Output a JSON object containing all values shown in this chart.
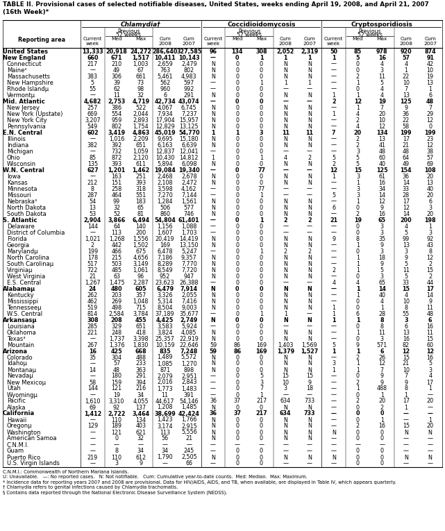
{
  "title": "TABLE II. Provisional cases of selected notifiable diseases, United States, weeks ending April 19, 2008, and April 21, 2007",
  "subtitle": "(16th Week)*",
  "col_groups": [
    "Chlamydia†",
    "Coccidioidomycosis",
    "Cryptosporidiosis"
  ],
  "col_headers": [
    "Current\nweek",
    "Med",
    "Max",
    "Cum\n2008",
    "Cum\n2007"
  ],
  "sub_header": "Previous\n52 weeks",
  "row_label_header": "Reporting area",
  "rows": [
    [
      "United States",
      "13,333",
      "20,918",
      "24,272",
      "286,640",
      "327,585",
      "96",
      "134",
      "308",
      "2,052",
      "2,319",
      "50",
      "85",
      "978",
      "920",
      "874"
    ],
    [
      "New England",
      "660",
      "671",
      "1,517",
      "10,411",
      "10,143",
      "—",
      "0",
      "1",
      "1",
      "1",
      "1",
      "5",
      "16",
      "57",
      "91"
    ],
    [
      "Connecticut",
      "217",
      "210",
      "1,003",
      "2,659",
      "2,479",
      "N",
      "0",
      "0",
      "N",
      "N",
      "—",
      "0",
      "4",
      "4",
      "42"
    ],
    [
      "Maine²",
      "—",
      "49",
      "67",
      "763",
      "802",
      "N",
      "0",
      "0",
      "N",
      "N",
      "—",
      "0",
      "3",
      "1",
      "10"
    ],
    [
      "Massachusetts",
      "383",
      "306",
      "661",
      "5,461",
      "4,983",
      "N",
      "0",
      "0",
      "N",
      "N",
      "—",
      "2",
      "11",
      "22",
      "19"
    ],
    [
      "New Hampshire",
      "5",
      "39",
      "73",
      "562",
      "597",
      "—",
      "0",
      "1",
      "1",
      "1",
      "—",
      "1",
      "5",
      "10",
      "13"
    ],
    [
      "Rhode Islandµ",
      "55",
      "62",
      "98",
      "960",
      "992",
      "—",
      "0",
      "0",
      "—",
      "—",
      "—",
      "0",
      "4",
      "7",
      "1"
    ],
    [
      "Vermontµ",
      "—",
      "11",
      "32",
      "6",
      "291",
      "N",
      "0",
      "0",
      "N",
      "N",
      "1",
      "1",
      "4",
      "13",
      "6"
    ],
    [
      "Mid. Atlantic",
      "4,682",
      "2,753",
      "4,719",
      "42,734",
      "43,074",
      "—",
      "0",
      "0",
      "—",
      "—",
      "2",
      "12",
      "19",
      "125",
      "48"
    ],
    [
      "New Jersey",
      "257",
      "386",
      "522",
      "4,067",
      "6,745",
      "N",
      "0",
      "0",
      "N",
      "N",
      "—",
      "1",
      "7",
      "9",
      "7"
    ],
    [
      "New York (Upstate)",
      "669",
      "554",
      "2,044",
      "7,934",
      "7,237",
      "N",
      "0",
      "0",
      "N",
      "N",
      "1",
      "4",
      "20",
      "36",
      "29"
    ],
    [
      "New York City",
      "3,207",
      "959",
      "2,893",
      "17,904",
      "15,957",
      "N",
      "0",
      "0",
      "N",
      "N",
      "—",
      "2",
      "10",
      "22",
      "12"
    ],
    [
      "Pennsylvania",
      "549",
      "802",
      "1,754",
      "12,829",
      "13,125",
      "N",
      "0",
      "0",
      "N",
      "N",
      "—",
      "4",
      "12",
      "58",
      "0"
    ],
    [
      "E.N. Central",
      "602",
      "3,419",
      "4,863",
      "45,019",
      "54,770",
      "1",
      "1",
      "3",
      "11",
      "11",
      "7",
      "20",
      "134",
      "199",
      "199"
    ],
    [
      "Illinois",
      "—",
      "1,016",
      "2,209",
      "9,695",
      "15,180",
      "N",
      "0",
      "0",
      "N",
      "N",
      "—",
      "2",
      "13",
      "17",
      "23"
    ],
    [
      "Indiana",
      "382",
      "392",
      "651",
      "6,163",
      "6,639",
      "N",
      "0",
      "0",
      "N",
      "N",
      "—",
      "2",
      "41",
      "21",
      "12"
    ],
    [
      "Michigan",
      "—",
      "732",
      "1,059",
      "12,837",
      "12,041",
      "—",
      "0",
      "0",
      "—",
      "—",
      "—",
      "3",
      "48",
      "48",
      "38"
    ],
    [
      "Ohio",
      "85",
      "872",
      "2,120",
      "10,430",
      "14,812",
      "1",
      "0",
      "1",
      "4",
      "2",
      "5",
      "5",
      "60",
      "64",
      "57"
    ],
    [
      "Wisconsin",
      "135",
      "393",
      "611",
      "5,894",
      "6,098",
      "N",
      "0",
      "0",
      "N",
      "N",
      "2",
      "5",
      "40",
      "49",
      "69"
    ],
    [
      "W.N. Central",
      "627",
      "1,201",
      "1,462",
      "19,084",
      "19,340",
      "—",
      "0",
      "77",
      "—",
      "—",
      "12",
      "15",
      "125",
      "154",
      "108"
    ],
    [
      "Iowa",
      "—",
      "163",
      "251",
      "2,468",
      "2,678",
      "N",
      "0",
      "0",
      "N",
      "N",
      "1",
      "3",
      "61",
      "36",
      "20"
    ],
    [
      "Kansas",
      "212",
      "151",
      "393",
      "2,108",
      "2,472",
      "N",
      "0",
      "0",
      "N",
      "N",
      "—",
      "1",
      "16",
      "14",
      "13"
    ],
    [
      "Minnesota",
      "8",
      "258",
      "318",
      "3,598",
      "4,162",
      "—",
      "0",
      "77",
      "—",
      "—",
      "—",
      "3",
      "34",
      "33",
      "40"
    ],
    [
      "Missouri",
      "287",
      "464",
      "551",
      "7,270",
      "7,144",
      "—",
      "0",
      "1",
      "—",
      "—",
      "5",
      "3",
      "14",
      "28",
      "20"
    ],
    [
      "Nebraska³",
      "54",
      "99",
      "183",
      "1,284",
      "1,561",
      "N",
      "0",
      "0",
      "N",
      "N",
      "—",
      "1",
      "12",
      "17",
      "6"
    ],
    [
      "North Dakota",
      "13",
      "32",
      "65",
      "506",
      "577",
      "N",
      "0",
      "0",
      "N",
      "N",
      "6",
      "0",
      "9",
      "12",
      "3"
    ],
    [
      "South Dakota",
      "53",
      "52",
      "81",
      "860",
      "746",
      "N",
      "0",
      "0",
      "N",
      "N",
      "—",
      "2",
      "16",
      "14",
      "20"
    ],
    [
      "S. Atlantic",
      "2,904",
      "3,866",
      "6,494",
      "54,804",
      "61,401",
      "—",
      "0",
      "1",
      "2",
      "2",
      "21",
      "19",
      "65",
      "200",
      "198"
    ],
    [
      "Delaware",
      "144",
      "64",
      "140",
      "1,156",
      "1,088",
      "—",
      "0",
      "0",
      "—",
      "—",
      "—",
      "0",
      "3",
      "4",
      "1"
    ],
    [
      "District of Columbia",
      "—",
      "113",
      "200",
      "1,607",
      "1,703",
      "—",
      "0",
      "0",
      "—",
      "—",
      "—",
      "0",
      "3",
      "5",
      "3"
    ],
    [
      "Florida",
      "1,021",
      "1,268",
      "1,556",
      "20,419",
      "14,419",
      "N",
      "0",
      "0",
      "N",
      "N",
      "9",
      "8",
      "35",
      "99",
      "92"
    ],
    [
      "Georgia",
      "2",
      "442",
      "1,502",
      "169",
      "13,150",
      "N",
      "0",
      "0",
      "N",
      "N",
      "—",
      "1",
      "9",
      "13",
      "43"
    ],
    [
      "Marylandµ",
      "199",
      "466",
      "675",
      "6,478",
      "5,247",
      "—",
      "0",
      "1",
      "2",
      "2",
      "—",
      "0",
      "3",
      "3",
      "8"
    ],
    [
      "North Carolina",
      "178",
      "215",
      "4,656",
      "7,186",
      "9,357",
      "N",
      "0",
      "0",
      "N",
      "N",
      "—",
      "1",
      "18",
      "9",
      "12"
    ],
    [
      "South Carolinaµ",
      "517",
      "503",
      "3,149",
      "8,289",
      "7,770",
      "N",
      "0",
      "0",
      "N",
      "N",
      "—",
      "1",
      "9",
      "5",
      "2"
    ],
    [
      "Virginiaµ",
      "722",
      "485",
      "1,061",
      "8,549",
      "7,720",
      "N",
      "0",
      "0",
      "N",
      "N",
      "2",
      "1",
      "5",
      "11",
      "15"
    ],
    [
      "West Virginia",
      "21",
      "63",
      "96",
      "952",
      "947",
      "N",
      "0",
      "0",
      "N",
      "N",
      "—",
      "0",
      "3",
      "5",
      "2"
    ],
    [
      "E.S. Central",
      "1,267",
      "1,475",
      "2,287",
      "23,623",
      "26,388",
      "—",
      "0",
      "0",
      "—",
      "—",
      "4",
      "4",
      "65",
      "33",
      "44"
    ],
    [
      "Alabamaµ",
      "24",
      "480",
      "605",
      "6,479",
      "7,914",
      "N",
      "0",
      "0",
      "N",
      "N",
      "—",
      "1",
      "14",
      "15",
      "17"
    ],
    [
      "Kentucky",
      "262",
      "203",
      "357",
      "3,326",
      "2,055",
      "N",
      "0",
      "0",
      "N",
      "N",
      "—",
      "1",
      "40",
      "4",
      "14"
    ],
    [
      "Mississippi",
      "462",
      "269",
      "1,048",
      "5,314",
      "7,416",
      "N",
      "0",
      "0",
      "N",
      "N",
      "—",
      "0",
      "4",
      "10",
      "9"
    ],
    [
      "Tennesseeµ",
      "519",
      "498",
      "715",
      "8,504",
      "9,003",
      "N",
      "0",
      "0",
      "N",
      "N",
      "1",
      "0",
      "1",
      "8",
      "11"
    ],
    [
      "W.S. Central",
      "814",
      "2,584",
      "3,784",
      "37,189",
      "35,677",
      "—",
      "0",
      "1",
      "1",
      "—",
      "1",
      "6",
      "28",
      "55",
      "48"
    ],
    [
      "Arkansasµ",
      "308",
      "208",
      "455",
      "4,425",
      "2,749",
      "N",
      "0",
      "0",
      "N",
      "N",
      "1",
      "1",
      "8",
      "3",
      "6"
    ],
    [
      "Louisiana",
      "285",
      "329",
      "651",
      "3,583",
      "5,924",
      "—",
      "0",
      "0",
      "—",
      "—",
      "—",
      "0",
      "8",
      "6",
      "16"
    ],
    [
      "Oklahoma",
      "221",
      "248",
      "418",
      "3,824",
      "4,085",
      "N",
      "0",
      "0",
      "N",
      "N",
      "—",
      "1",
      "11",
      "13",
      "11"
    ],
    [
      "Texas³",
      "—",
      "1,737",
      "3,398",
      "25,357",
      "22,919",
      "N",
      "0",
      "0",
      "N",
      "N",
      "—",
      "0",
      "3",
      "16",
      "15"
    ],
    [
      "Mountain",
      "267",
      "1,376",
      "1,830",
      "10,159",
      "22,646",
      "59",
      "86",
      "169",
      "1,403",
      "1,569",
      "5",
      "9",
      "571",
      "82",
      "60"
    ],
    [
      "Arizona",
      "16",
      "425",
      "668",
      "835",
      "7,248",
      "59",
      "86",
      "169",
      "1,379",
      "1,527",
      "1",
      "1",
      "6",
      "12",
      "12"
    ],
    [
      "Colorado",
      "35",
      "304",
      "488",
      "1,489",
      "5,572",
      "N",
      "0",
      "0",
      "N",
      "N",
      "—",
      "2",
      "26",
      "15",
      "16"
    ],
    [
      "Idahoµ",
      "—",
      "57",
      "233",
      "1,085",
      "1,270",
      "N",
      "0",
      "0",
      "N",
      "N",
      "3",
      "1",
      "12",
      "21",
      "5"
    ],
    [
      "Montanaµ",
      "14",
      "48",
      "363",
      "871",
      "898",
      "N",
      "0",
      "0",
      "N",
      "N",
      "1",
      "1",
      "7",
      "10",
      "3"
    ],
    [
      "Nevadaµ",
      "—",
      "180",
      "291",
      "2,079",
      "2,951",
      "—",
      "0",
      "5",
      "15",
      "15",
      "—",
      "0",
      "9",
      "7",
      "4"
    ],
    [
      "New Mexicoµ",
      "58",
      "159",
      "394",
      "2,016",
      "2,843",
      "—",
      "0",
      "3",
      "10",
      "9",
      "—",
      "2",
      "9",
      "9",
      "17"
    ],
    [
      "Utah",
      "144",
      "121",
      "216",
      "1,773",
      "1,483",
      "—",
      "0",
      "7",
      "3",
      "18",
      "—",
      "1",
      "488",
      "8",
      "1"
    ],
    [
      "Wyomingµ",
      "—",
      "19",
      "34",
      "11",
      "391",
      "—",
      "0",
      "1",
      "—",
      "—",
      "—",
      "0",
      "1",
      "1",
      "—"
    ],
    [
      "Pacific",
      "1,610",
      "3,310",
      "4,055",
      "44,617",
      "54,146",
      "36",
      "37",
      "217",
      "634",
      "733",
      "—",
      "2",
      "20",
      "17",
      "20"
    ],
    [
      "Alaska",
      "69",
      "92",
      "137",
      "1,208",
      "1,485",
      "N",
      "0",
      "0",
      "N",
      "N",
      "—",
      "0",
      "2",
      "1",
      "—"
    ],
    [
      "California",
      "1,412",
      "2,722",
      "3,464",
      "38,699",
      "42,424",
      "36",
      "37",
      "217",
      "634",
      "733",
      "—",
      "0",
      "0",
      "—",
      "—"
    ],
    [
      "Hawaii",
      "—",
      "110",
      "134",
      "1,423",
      "1,766",
      "N",
      "0",
      "0",
      "N",
      "N",
      "—",
      "0",
      "1",
      "—",
      "1"
    ],
    [
      "Oregonµ",
      "129",
      "189",
      "403",
      "3,174",
      "2,915",
      "N",
      "0",
      "0",
      "N",
      "N",
      "—",
      "2",
      "16",
      "15",
      "20"
    ],
    [
      "Washington",
      "—",
      "121",
      "621",
      "113",
      "5,556",
      "N",
      "0",
      "0",
      "N",
      "N",
      "N",
      "0",
      "0",
      "N",
      "N"
    ],
    [
      "American Samoa",
      "—",
      "0",
      "32",
      "56",
      "21",
      "N",
      "0",
      "0",
      "N",
      "N",
      "—",
      "0",
      "0",
      "—",
      "—"
    ],
    [
      "C.N.M.I.",
      "—",
      "—",
      "—",
      "—",
      "—",
      "—",
      "—",
      "—",
      "—",
      "—",
      "—",
      "—",
      "—",
      "—",
      "—"
    ],
    [
      "Guam",
      "—",
      "8",
      "34",
      "34",
      "245",
      "—",
      "0",
      "0",
      "—",
      "—",
      "—",
      "0",
      "0",
      "—",
      "—"
    ],
    [
      "Puerto Rico",
      "219",
      "110",
      "612",
      "1,790",
      "2,505",
      "N",
      "0",
      "0",
      "N",
      "N",
      "N",
      "0",
      "0",
      "N",
      "N"
    ],
    [
      "U.S. Virgin Islands",
      "—",
      "3",
      "9",
      "—",
      "66",
      "—",
      "0",
      "0",
      "—",
      "—",
      "—",
      "0",
      "0",
      "—",
      "—"
    ]
  ],
  "group_heading_indices": [
    1,
    8,
    13,
    19,
    27,
    38,
    43,
    48,
    58
  ],
  "footnotes": [
    "C.N.M.I.: Commonwealth of Northern Mariana Islands.",
    "U: Unavailable.   —: No reported cases.   N: Not notifiable.   Cum: Cumulative year-to-date counts.  Med: Median.  Max: Maximum.",
    "* Incidence data for reporting years 2007 and 2008 are provisional. Data for HIV/AIDS, AIDS, and TB, when available, are displayed in Table IV, which appears quarterly.",
    "† Chlamydia refers to genital infections caused by Chlamydia trachomatis.",
    "§ Contains data reported through the National Electronic Disease Surveillance System (NEDSS)."
  ]
}
